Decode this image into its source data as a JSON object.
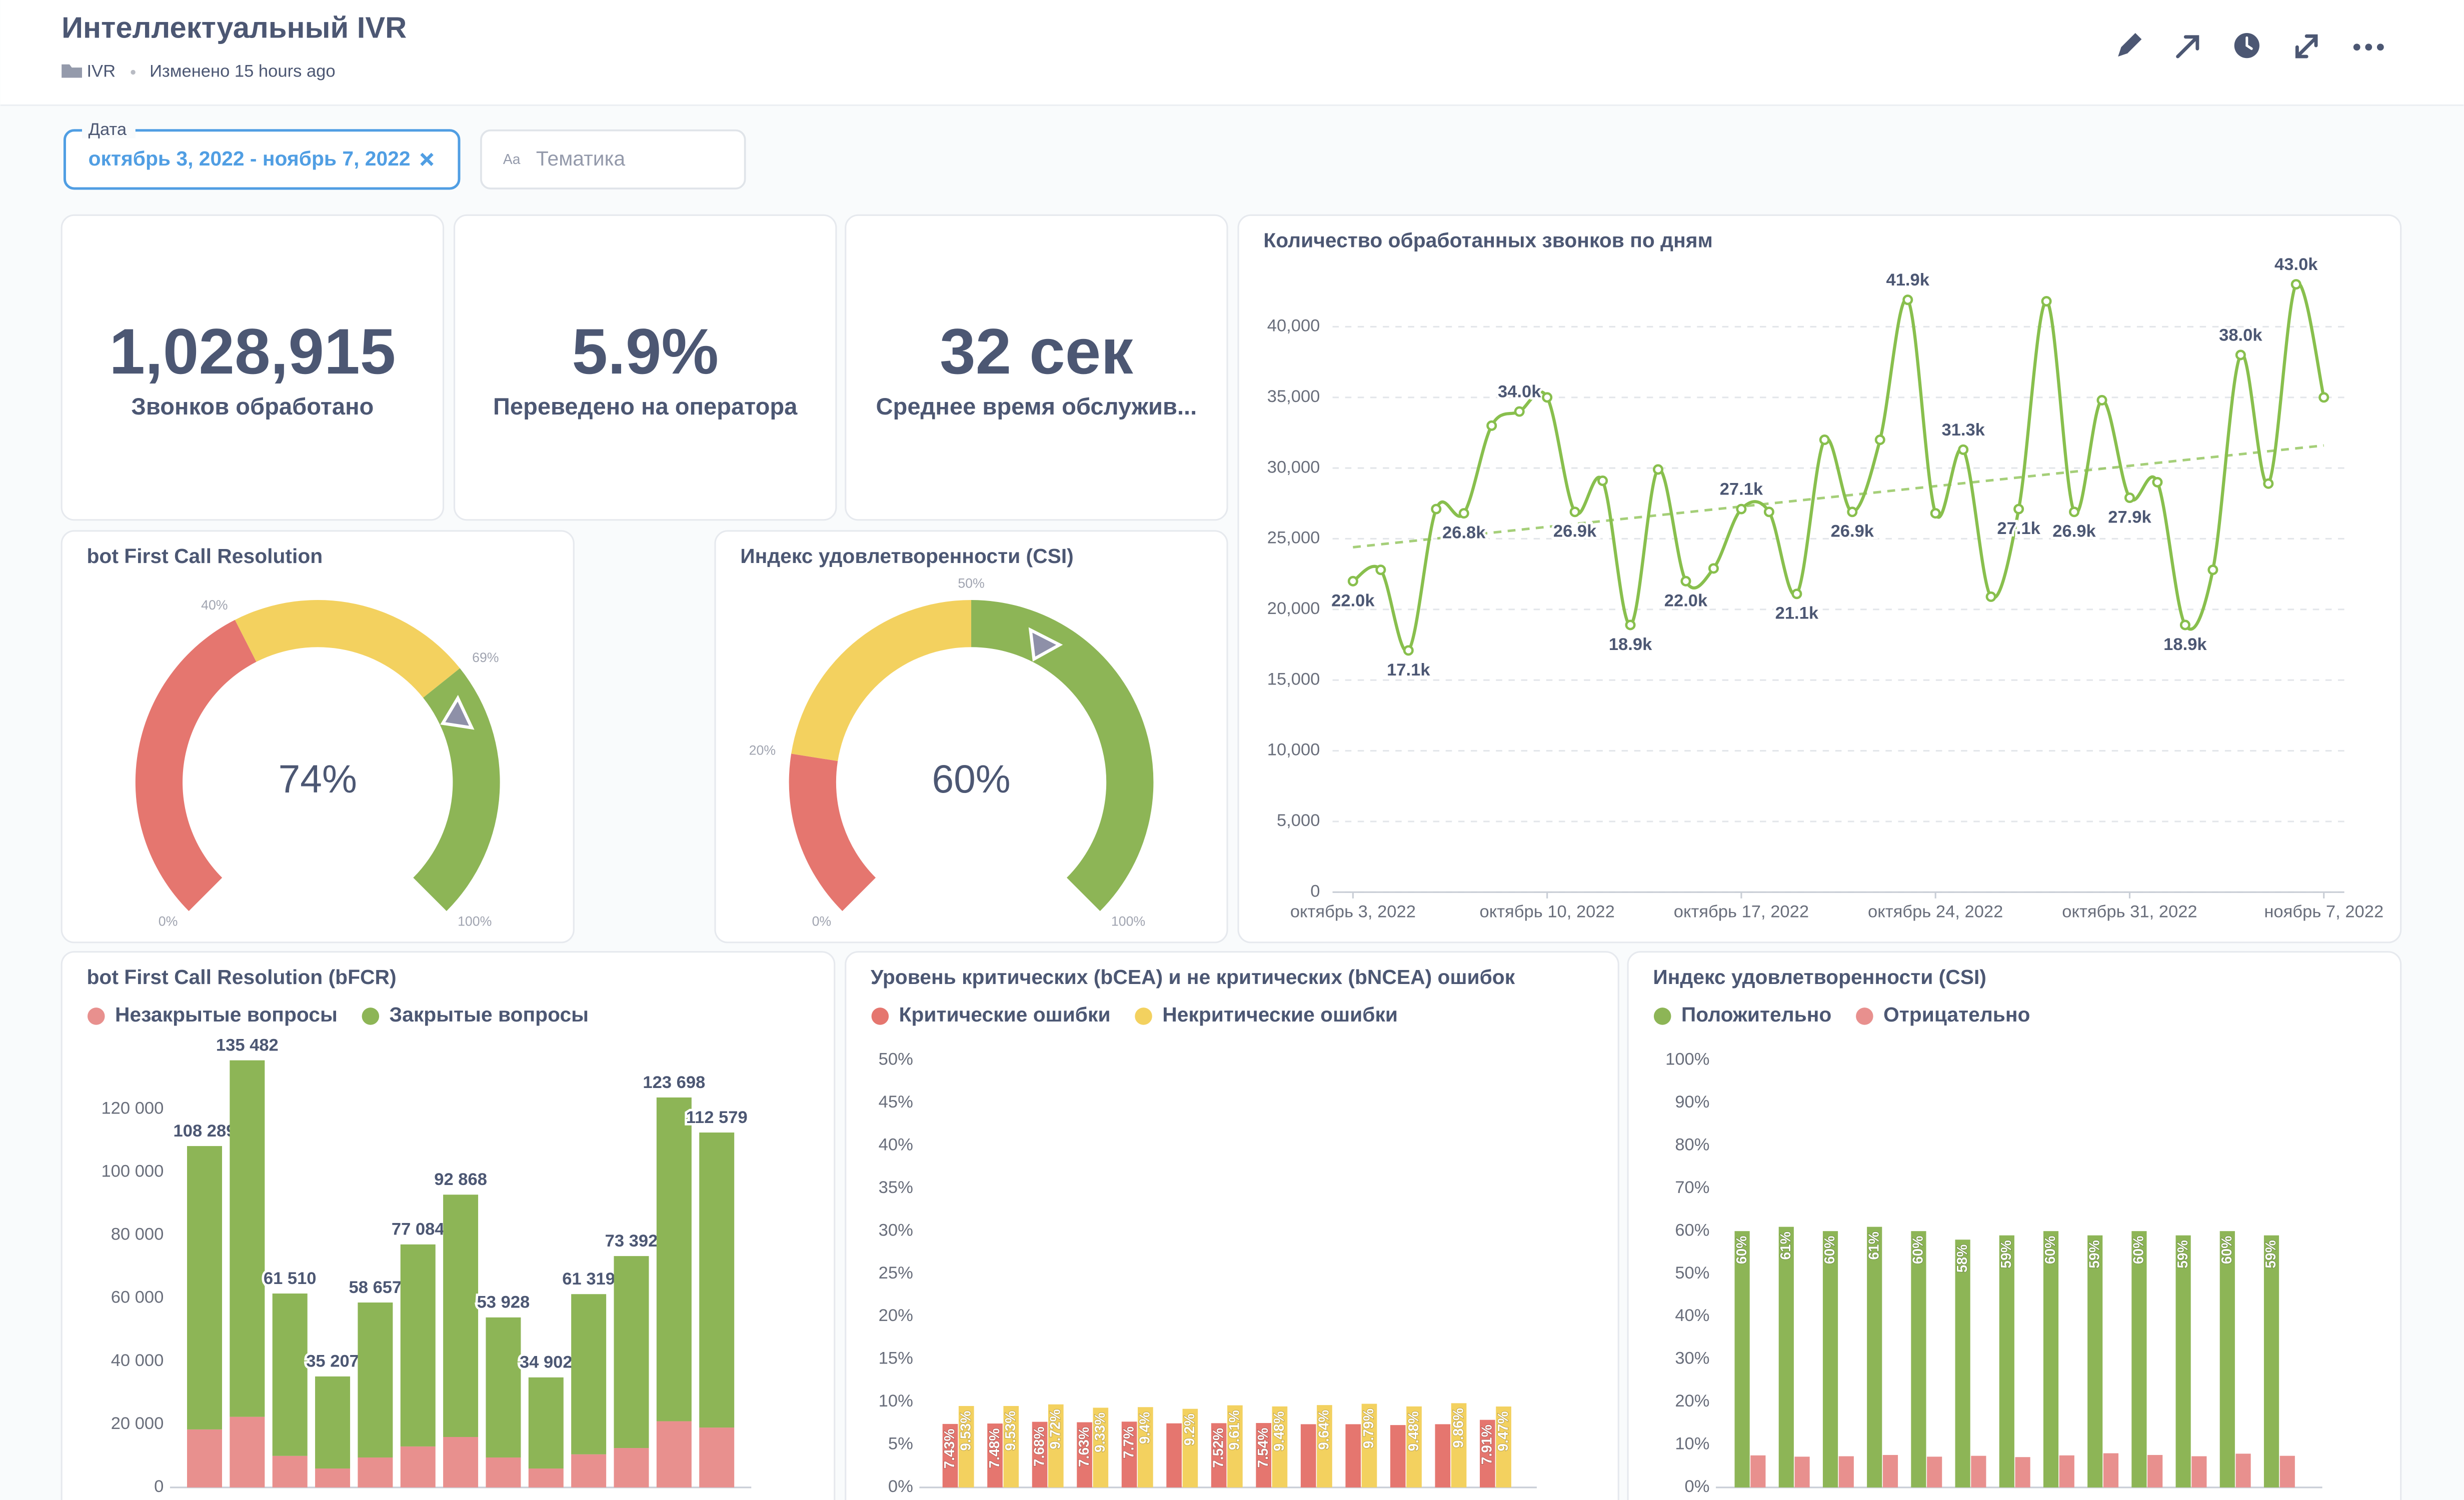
{
  "header": {
    "title": "Интеллектуальный IVR",
    "collection": "IVR",
    "modified": "Изменено 15 hours ago"
  },
  "filters": [
    {
      "label": "Дата",
      "value": "октябрь 3, 2022 - ноябрь 7, 2022"
    },
    {
      "icon": "Aa",
      "placeholder": "Тематика"
    }
  ],
  "kpis": [
    {
      "value": "1,028,915",
      "label": "Звонков обработано"
    },
    {
      "value": "5.9%",
      "label": "Переведено на оператора"
    },
    {
      "value": "32 сек",
      "label": "Среднее время обслужив..."
    }
  ],
  "chart_data": [
    {
      "type": "gauge",
      "title": "bot First Call Resolution",
      "value": 74,
      "value_label": "74%",
      "range": [
        0,
        100
      ],
      "ranges": [
        {
          "from": 0,
          "to": 40,
          "color": "#e5766f"
        },
        {
          "from": 40,
          "to": 69,
          "color": "#f3d15f"
        },
        {
          "from": 69,
          "to": 100,
          "color": "#8db556"
        }
      ],
      "ticks": [
        {
          "value": 0,
          "label": "0%"
        },
        {
          "value": 40,
          "label": "40%"
        },
        {
          "value": 69,
          "label": "69%"
        },
        {
          "value": 100,
          "label": "100%"
        }
      ]
    },
    {
      "type": "gauge",
      "title": "Индекс удовлетворенности (CSI)",
      "value": 60,
      "value_label": "60%",
      "range": [
        0,
        100
      ],
      "ranges": [
        {
          "from": 0,
          "to": 20,
          "color": "#e5766f"
        },
        {
          "from": 20,
          "to": 50,
          "color": "#f3d15f"
        },
        {
          "from": 50,
          "to": 100,
          "color": "#8db556"
        }
      ],
      "ticks": [
        {
          "value": 0,
          "label": "0%"
        },
        {
          "value": 20,
          "label": "20%"
        },
        {
          "value": 50,
          "label": "50%"
        },
        {
          "value": 100,
          "label": "100%"
        }
      ]
    },
    {
      "type": "line",
      "title": "Количество обработанных звонков по дням",
      "color": "#88bf4d",
      "grid": true,
      "x": [
        "2022-10-03",
        "2022-10-04",
        "2022-10-05",
        "2022-10-06",
        "2022-10-07",
        "2022-10-08",
        "2022-10-09",
        "2022-10-10",
        "2022-10-11",
        "2022-10-12",
        "2022-10-13",
        "2022-10-14",
        "2022-10-15",
        "2022-10-16",
        "2022-10-17",
        "2022-10-18",
        "2022-10-19",
        "2022-10-20",
        "2022-10-21",
        "2022-10-22",
        "2022-10-23",
        "2022-10-24",
        "2022-10-25",
        "2022-10-26",
        "2022-10-27",
        "2022-10-28",
        "2022-10-29",
        "2022-10-30",
        "2022-10-31",
        "2022-11-01",
        "2022-11-02",
        "2022-11-03",
        "2022-11-04",
        "2022-11-05",
        "2022-11-06",
        "2022-11-07"
      ],
      "values": [
        22000,
        22800,
        17100,
        27100,
        26800,
        33000,
        34000,
        35000,
        26900,
        29100,
        18900,
        29900,
        22000,
        22900,
        27100,
        26900,
        21100,
        32000,
        26900,
        32000,
        41900,
        26800,
        31300,
        20900,
        27100,
        41800,
        26900,
        34800,
        27900,
        29000,
        18900,
        22800,
        38000,
        28900,
        43000,
        35000
      ],
      "value_labels": [
        "22.0k",
        null,
        "17.1k",
        null,
        "26.8k",
        null,
        "34.0k",
        null,
        "26.9k",
        null,
        "18.9k",
        null,
        "22.0k",
        null,
        "27.1k",
        null,
        "21.1k",
        null,
        "26.9k",
        null,
        "41.9k",
        null,
        "31.3k",
        null,
        "27.1k",
        null,
        "26.9k",
        null,
        "27.9k",
        null,
        "18.9k",
        null,
        "38.0k",
        null,
        "43.0k",
        null
      ],
      "trendline": [
        24400,
        31600
      ],
      "ylim": [
        0,
        45000
      ],
      "yticks": [
        0,
        {
          "value": 5000,
          "label": "5,000"
        },
        {
          "value": 10000,
          "label": "10,000"
        },
        {
          "value": 15000,
          "label": "15,000"
        },
        {
          "value": 20000,
          "label": "20,000"
        },
        {
          "value": 25000,
          "label": "25,000"
        },
        {
          "value": 30000,
          "label": "30,000"
        },
        {
          "value": 35000,
          "label": "35,000"
        },
        {
          "value": 40000,
          "label": "40,000"
        }
      ],
      "xticks": [
        {
          "value": "2022-10-03",
          "label": "октябрь 3, 2022"
        },
        {
          "value": "2022-10-10",
          "label": "октябрь 10, 2022"
        },
        {
          "value": "2022-10-17",
          "label": "октябрь 17, 2022"
        },
        {
          "value": "2022-10-24",
          "label": "октябрь 24, 2022"
        },
        {
          "value": "2022-10-31",
          "label": "октябрь 31, 2022"
        },
        {
          "value": "2022-11-07",
          "label": "ноябрь 7, 2022"
        }
      ]
    },
    {
      "type": "bar",
      "stacked": true,
      "title": "bot First Call Resolution (bFCR)",
      "legend": "top",
      "categories": [
        null,
        null,
        null,
        null,
        null,
        null,
        null,
        null,
        null,
        null,
        null,
        null,
        null
      ],
      "series": [
        {
          "name": "Незакрытые вопросы",
          "color": "#e8908e",
          "values": [
            18400,
            22400,
            10000,
            6000,
            9500,
            13000,
            16000,
            9500,
            6000,
            10500,
            12500,
            21000,
            19000
          ]
        },
        {
          "name": "Закрытые вопросы",
          "color": "#8db556",
          "values": [
            89889,
            113082,
            51510,
            29207,
            49157,
            64084,
            76868,
            44428,
            28902,
            50819,
            60892,
            102698,
            93579
          ]
        }
      ],
      "totals": [
        108289,
        135482,
        61510,
        35207,
        58657,
        77084,
        92868,
        53928,
        34902,
        61319,
        73392,
        123698,
        112579
      ],
      "total_labels": [
        "108 289",
        "135 482",
        "61 510",
        "35 207",
        "58 657",
        "77 084",
        "92 868",
        "53 928",
        "34 902",
        "61 319",
        "73 392",
        "123 698",
        "112 579"
      ],
      "ylim": [
        0,
        140000
      ],
      "yticks": [
        0,
        {
          "value": 20000,
          "label": "20 000"
        },
        {
          "value": 40000,
          "label": "40 000"
        },
        {
          "value": 60000,
          "label": "60 000"
        },
        {
          "value": 80000,
          "label": "80 000"
        },
        {
          "value": 100000,
          "label": "100 000"
        },
        {
          "value": 120000,
          "label": "120 000"
        }
      ]
    },
    {
      "type": "bar",
      "stacked": false,
      "title": "Уровень критических (bCEA) и не критических (bNCEA) ошибок",
      "legend": "top",
      "categories": [
        null,
        null,
        null,
        null,
        null,
        null,
        null,
        null,
        null,
        null,
        null,
        null,
        null
      ],
      "series": [
        {
          "name": "Критические ошибки",
          "color": "#e5766f",
          "values": [
            7.43,
            7.48,
            7.68,
            7.63,
            7.7,
            7.5,
            7.52,
            7.54,
            7.4,
            7.4,
            7.3,
            7.4,
            7.91
          ],
          "value_labels": [
            "7.43%",
            "7.48%",
            "7.68%",
            "7.63%",
            "7.7%",
            null,
            "7.52%",
            "7.54%",
            null,
            null,
            null,
            null,
            "7.91%"
          ]
        },
        {
          "name": "Некритические ошибки",
          "color": "#f3d15f",
          "values": [
            9.53,
            9.53,
            9.72,
            9.33,
            9.4,
            9.2,
            9.61,
            9.48,
            9.64,
            9.79,
            9.48,
            9.86,
            9.47
          ],
          "value_labels": [
            "9.53%",
            "9.53%",
            "9.72%",
            "9.33%",
            "9.4%",
            "9.2%",
            "9.61%",
            "9.48%",
            "9.64%",
            "9.79%",
            "9.48%",
            "9.86%",
            "9.47%"
          ]
        }
      ],
      "ylim": [
        0,
        50
      ],
      "yticks": [
        {
          "value": 0,
          "label": "0%"
        },
        {
          "value": 5,
          "label": "5%"
        },
        {
          "value": 10,
          "label": "10%"
        },
        {
          "value": 15,
          "label": "15%"
        },
        {
          "value": 20,
          "label": "20%"
        },
        {
          "value": 25,
          "label": "25%"
        },
        {
          "value": 30,
          "label": "30%"
        },
        {
          "value": 35,
          "label": "35%"
        },
        {
          "value": 40,
          "label": "40%"
        },
        {
          "value": 45,
          "label": "45%"
        },
        {
          "value": 50,
          "label": "50%"
        }
      ]
    },
    {
      "type": "bar",
      "stacked": false,
      "title": "Индекс удовлетворенности (CSI)",
      "legend": "top",
      "categories": [
        null,
        null,
        null,
        null,
        null,
        null,
        null,
        null,
        null,
        null,
        null,
        null,
        null
      ],
      "series": [
        {
          "name": "Положительно",
          "color": "#8db556",
          "values": [
            60,
            61,
            60,
            61,
            60,
            58,
            59,
            60,
            59,
            60,
            59,
            60,
            59
          ],
          "value_labels": [
            "60%",
            "61%",
            "60%",
            "61%",
            "60%",
            "58%",
            "59%",
            "60%",
            "59%",
            "60%",
            "59%",
            "60%",
            "59%"
          ]
        },
        {
          "name": "Отрицательно",
          "color": "#e8908e",
          "values": [
            7.5,
            7.2,
            7.3,
            7.6,
            7.2,
            7.4,
            7.1,
            7.5,
            8.0,
            7.6,
            7.3,
            7.9,
            7.4
          ]
        }
      ],
      "ylim": [
        0,
        100
      ],
      "yticks": [
        {
          "value": 0,
          "label": "0%"
        },
        {
          "value": 10,
          "label": "10%"
        },
        {
          "value": 20,
          "label": "20%"
        },
        {
          "value": 30,
          "label": "30%"
        },
        {
          "value": 40,
          "label": "40%"
        },
        {
          "value": 50,
          "label": "50%"
        },
        {
          "value": 60,
          "label": "60%"
        },
        {
          "value": 70,
          "label": "70%"
        },
        {
          "value": 80,
          "label": "80%"
        },
        {
          "value": 90,
          "label": "90%"
        },
        {
          "value": 100,
          "label": "100%"
        }
      ]
    }
  ]
}
